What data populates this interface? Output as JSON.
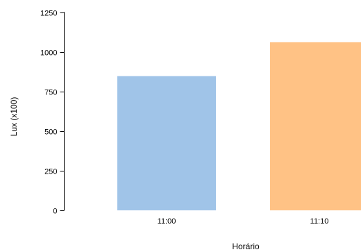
{
  "chart_data": {
    "type": "bar",
    "categories": [
      "11:00",
      "11:10"
    ],
    "values": [
      848,
      1062
    ],
    "colors": [
      "#a0c4e8",
      "#ffc285"
    ],
    "xlabel": "Horário",
    "ylabel": "Lux (x100)",
    "ylim": [
      0,
      1250
    ],
    "yticks": [
      0,
      250,
      500,
      750,
      1000,
      1250
    ],
    "grid": false
  }
}
